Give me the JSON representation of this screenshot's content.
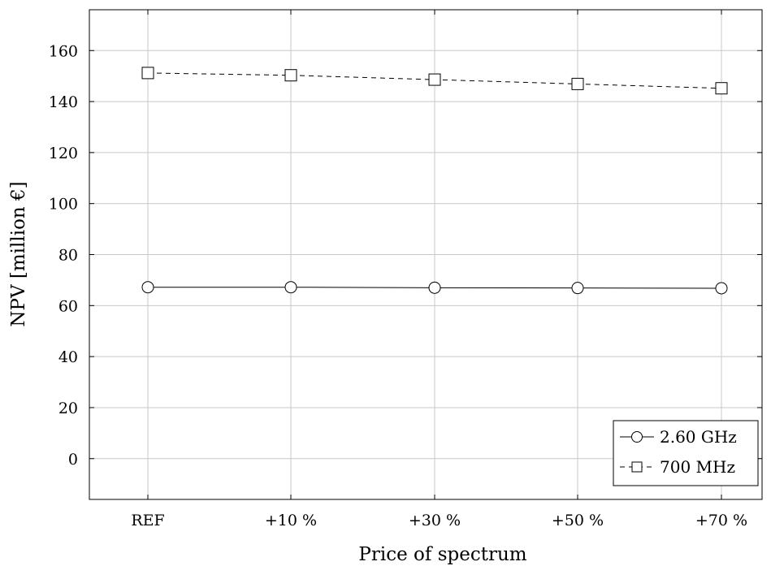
{
  "chart_data": {
    "type": "line",
    "title": "",
    "xlabel": "Price of spectrum",
    "ylabel": "NPV [million €]",
    "categories": [
      "REF",
      "+10 %",
      "+30 %",
      "+50 %",
      "+70 %"
    ],
    "ylim": [
      -16,
      176
    ],
    "yticks": [
      0,
      20,
      40,
      60,
      80,
      100,
      120,
      140,
      160
    ],
    "grid": true,
    "legend_position": "bottom-right",
    "series": [
      {
        "name": "2.60 GHz",
        "values": [
          67.2,
          67.2,
          67.0,
          66.9,
          66.8
        ],
        "line_style": "solid",
        "marker": "circle",
        "color": "#000000"
      },
      {
        "name": "700 MHz",
        "values": [
          151.2,
          150.3,
          148.6,
          146.9,
          145.2
        ],
        "line_style": "dashed",
        "marker": "square",
        "color": "#000000"
      }
    ]
  }
}
